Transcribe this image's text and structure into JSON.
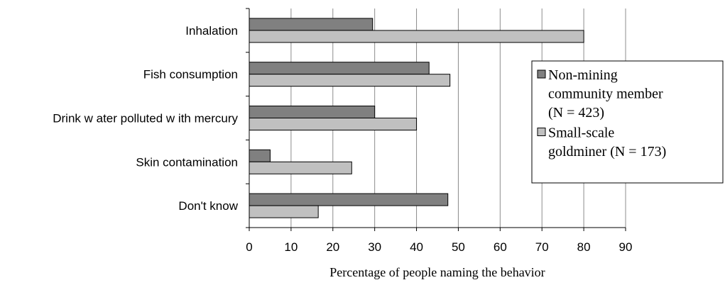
{
  "chart_data": {
    "type": "bar",
    "orientation": "horizontal",
    "categories": [
      "Inhalation",
      "Fish consumption",
      "Drink w ater polluted w ith mercury",
      "Skin contamination",
      "Don't know"
    ],
    "series": [
      {
        "name_lines": [
          "Non-mining",
          "community member",
          "(N = 423)"
        ],
        "color": "#808080",
        "values": [
          29.5,
          43,
          30,
          5,
          47.5
        ]
      },
      {
        "name_lines": [
          "Small-scale",
          "goldminer (N = 173)"
        ],
        "color": "#c0c0c0",
        "values": [
          80,
          48,
          40,
          24.5,
          16.5
        ]
      }
    ],
    "xlabel": "Percentage of people naming the behavior",
    "xlim": [
      0,
      90
    ],
    "xticks": [
      "0",
      "10",
      "20",
      "30",
      "40",
      "50",
      "60",
      "70",
      "80",
      "90"
    ],
    "grid": true,
    "legend_position": "right"
  }
}
